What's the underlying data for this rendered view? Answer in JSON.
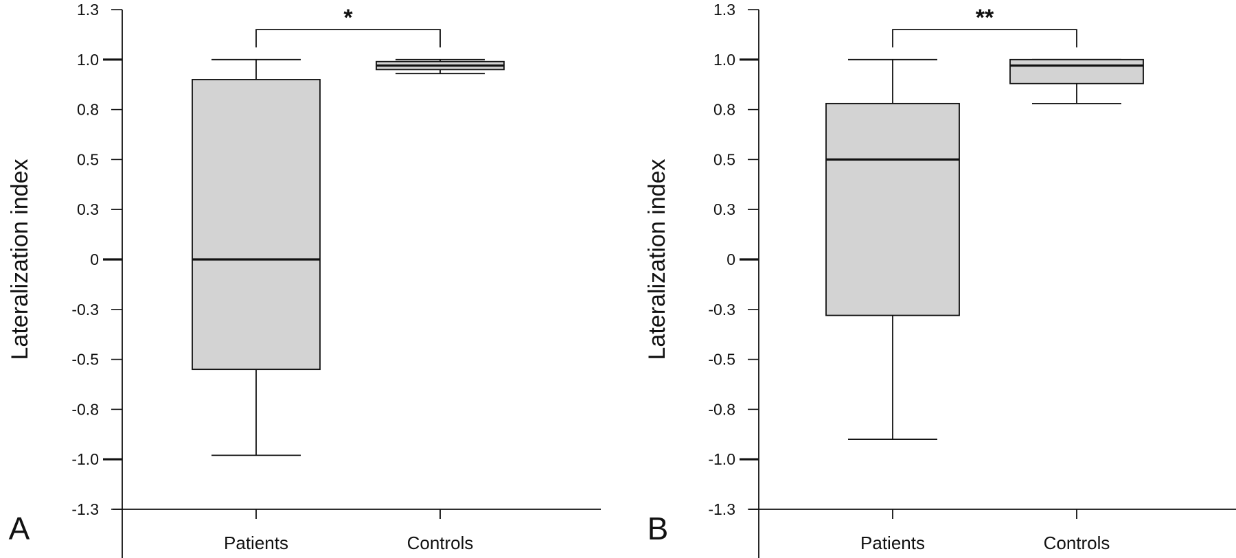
{
  "chart_data": [
    {
      "type": "box",
      "panel_label": "A",
      "ylabel": "Lateralization index",
      "categories": [
        "Patients",
        "Controls"
      ],
      "yticks": [
        "1.3",
        "1.0",
        "0.8",
        "0.5",
        "0.3",
        "0",
        "-0.3",
        "-0.5",
        "-0.8",
        "-1.0",
        "-1.3"
      ],
      "ylim": [
        -1.25,
        1.25
      ],
      "boxes": [
        {
          "category": "Patients",
          "whisker_low": -0.98,
          "q1": -0.55,
          "median": 0.0,
          "q3": 0.9,
          "whisker_high": 1.0
        },
        {
          "category": "Controls",
          "whisker_low": 0.93,
          "q1": 0.95,
          "median": 0.97,
          "q3": 0.99,
          "whisker_high": 1.0
        }
      ],
      "significance": {
        "between": [
          "Patients",
          "Controls"
        ],
        "label": "*",
        "y": 1.15
      },
      "grid": false,
      "box_color": "#d3d3d3"
    },
    {
      "type": "box",
      "panel_label": "B",
      "ylabel": "Lateralization index",
      "categories": [
        "Patients",
        "Controls"
      ],
      "yticks": [
        "1.3",
        "1.0",
        "0.8",
        "0.5",
        "0.3",
        "0",
        "-0.3",
        "-0.5",
        "-0.8",
        "-1.0",
        "-1.3"
      ],
      "ylim": [
        -1.25,
        1.25
      ],
      "boxes": [
        {
          "category": "Patients",
          "whisker_low": -0.9,
          "q1": -0.28,
          "median": 0.5,
          "q3": 0.78,
          "whisker_high": 1.0
        },
        {
          "category": "Controls",
          "whisker_low": 0.78,
          "q1": 0.88,
          "median": 0.97,
          "q3": 1.0,
          "whisker_high": 1.0
        }
      ],
      "significance": {
        "between": [
          "Patients",
          "Controls"
        ],
        "label": "**",
        "y": 1.15
      },
      "grid": false,
      "box_color": "#d3d3d3"
    }
  ]
}
